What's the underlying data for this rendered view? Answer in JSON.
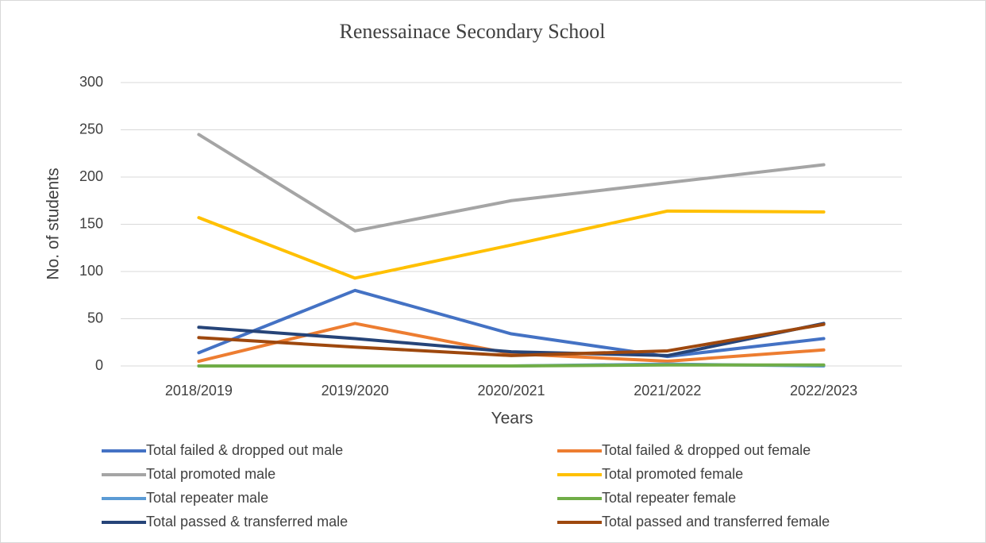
{
  "chart_data": {
    "type": "line",
    "title": "Renessainace Secondary School",
    "x_label": "Years",
    "y_label": "No. of students",
    "categories": [
      "2018/2019",
      "2019/2020",
      "2020/2021",
      "2021/2022",
      "2022/2023"
    ],
    "ylim": [
      0,
      300
    ],
    "yticks": [
      0,
      50,
      100,
      150,
      200,
      250,
      300
    ],
    "grid": true,
    "series": [
      {
        "name": "Total failed & dropped out male",
        "color": "#4472c4",
        "values": [
          14,
          80,
          34,
          10,
          29
        ]
      },
      {
        "name": "Total failed & dropped out female",
        "color": "#ed7d31",
        "values": [
          5,
          45,
          13,
          5,
          17
        ]
      },
      {
        "name": "Total promoted male",
        "color": "#a5a5a5",
        "values": [
          245,
          143,
          175,
          194,
          213
        ]
      },
      {
        "name": "Total promoted female",
        "color": "#ffc000",
        "values": [
          157,
          93,
          128,
          164,
          163
        ]
      },
      {
        "name": "Total repeater male",
        "color": "#5b9bd5",
        "values": [
          0,
          0,
          0,
          2,
          0
        ]
      },
      {
        "name": "Total repeater female",
        "color": "#70ad47",
        "values": [
          0,
          0,
          0,
          1,
          1
        ]
      },
      {
        "name": "Total passed & transferred male",
        "color": "#264478",
        "values": [
          41,
          29,
          15,
          11,
          45
        ]
      },
      {
        "name": "Total passed and transferred female",
        "color": "#9e480e",
        "values": [
          30,
          20,
          11,
          16,
          44
        ]
      }
    ]
  }
}
